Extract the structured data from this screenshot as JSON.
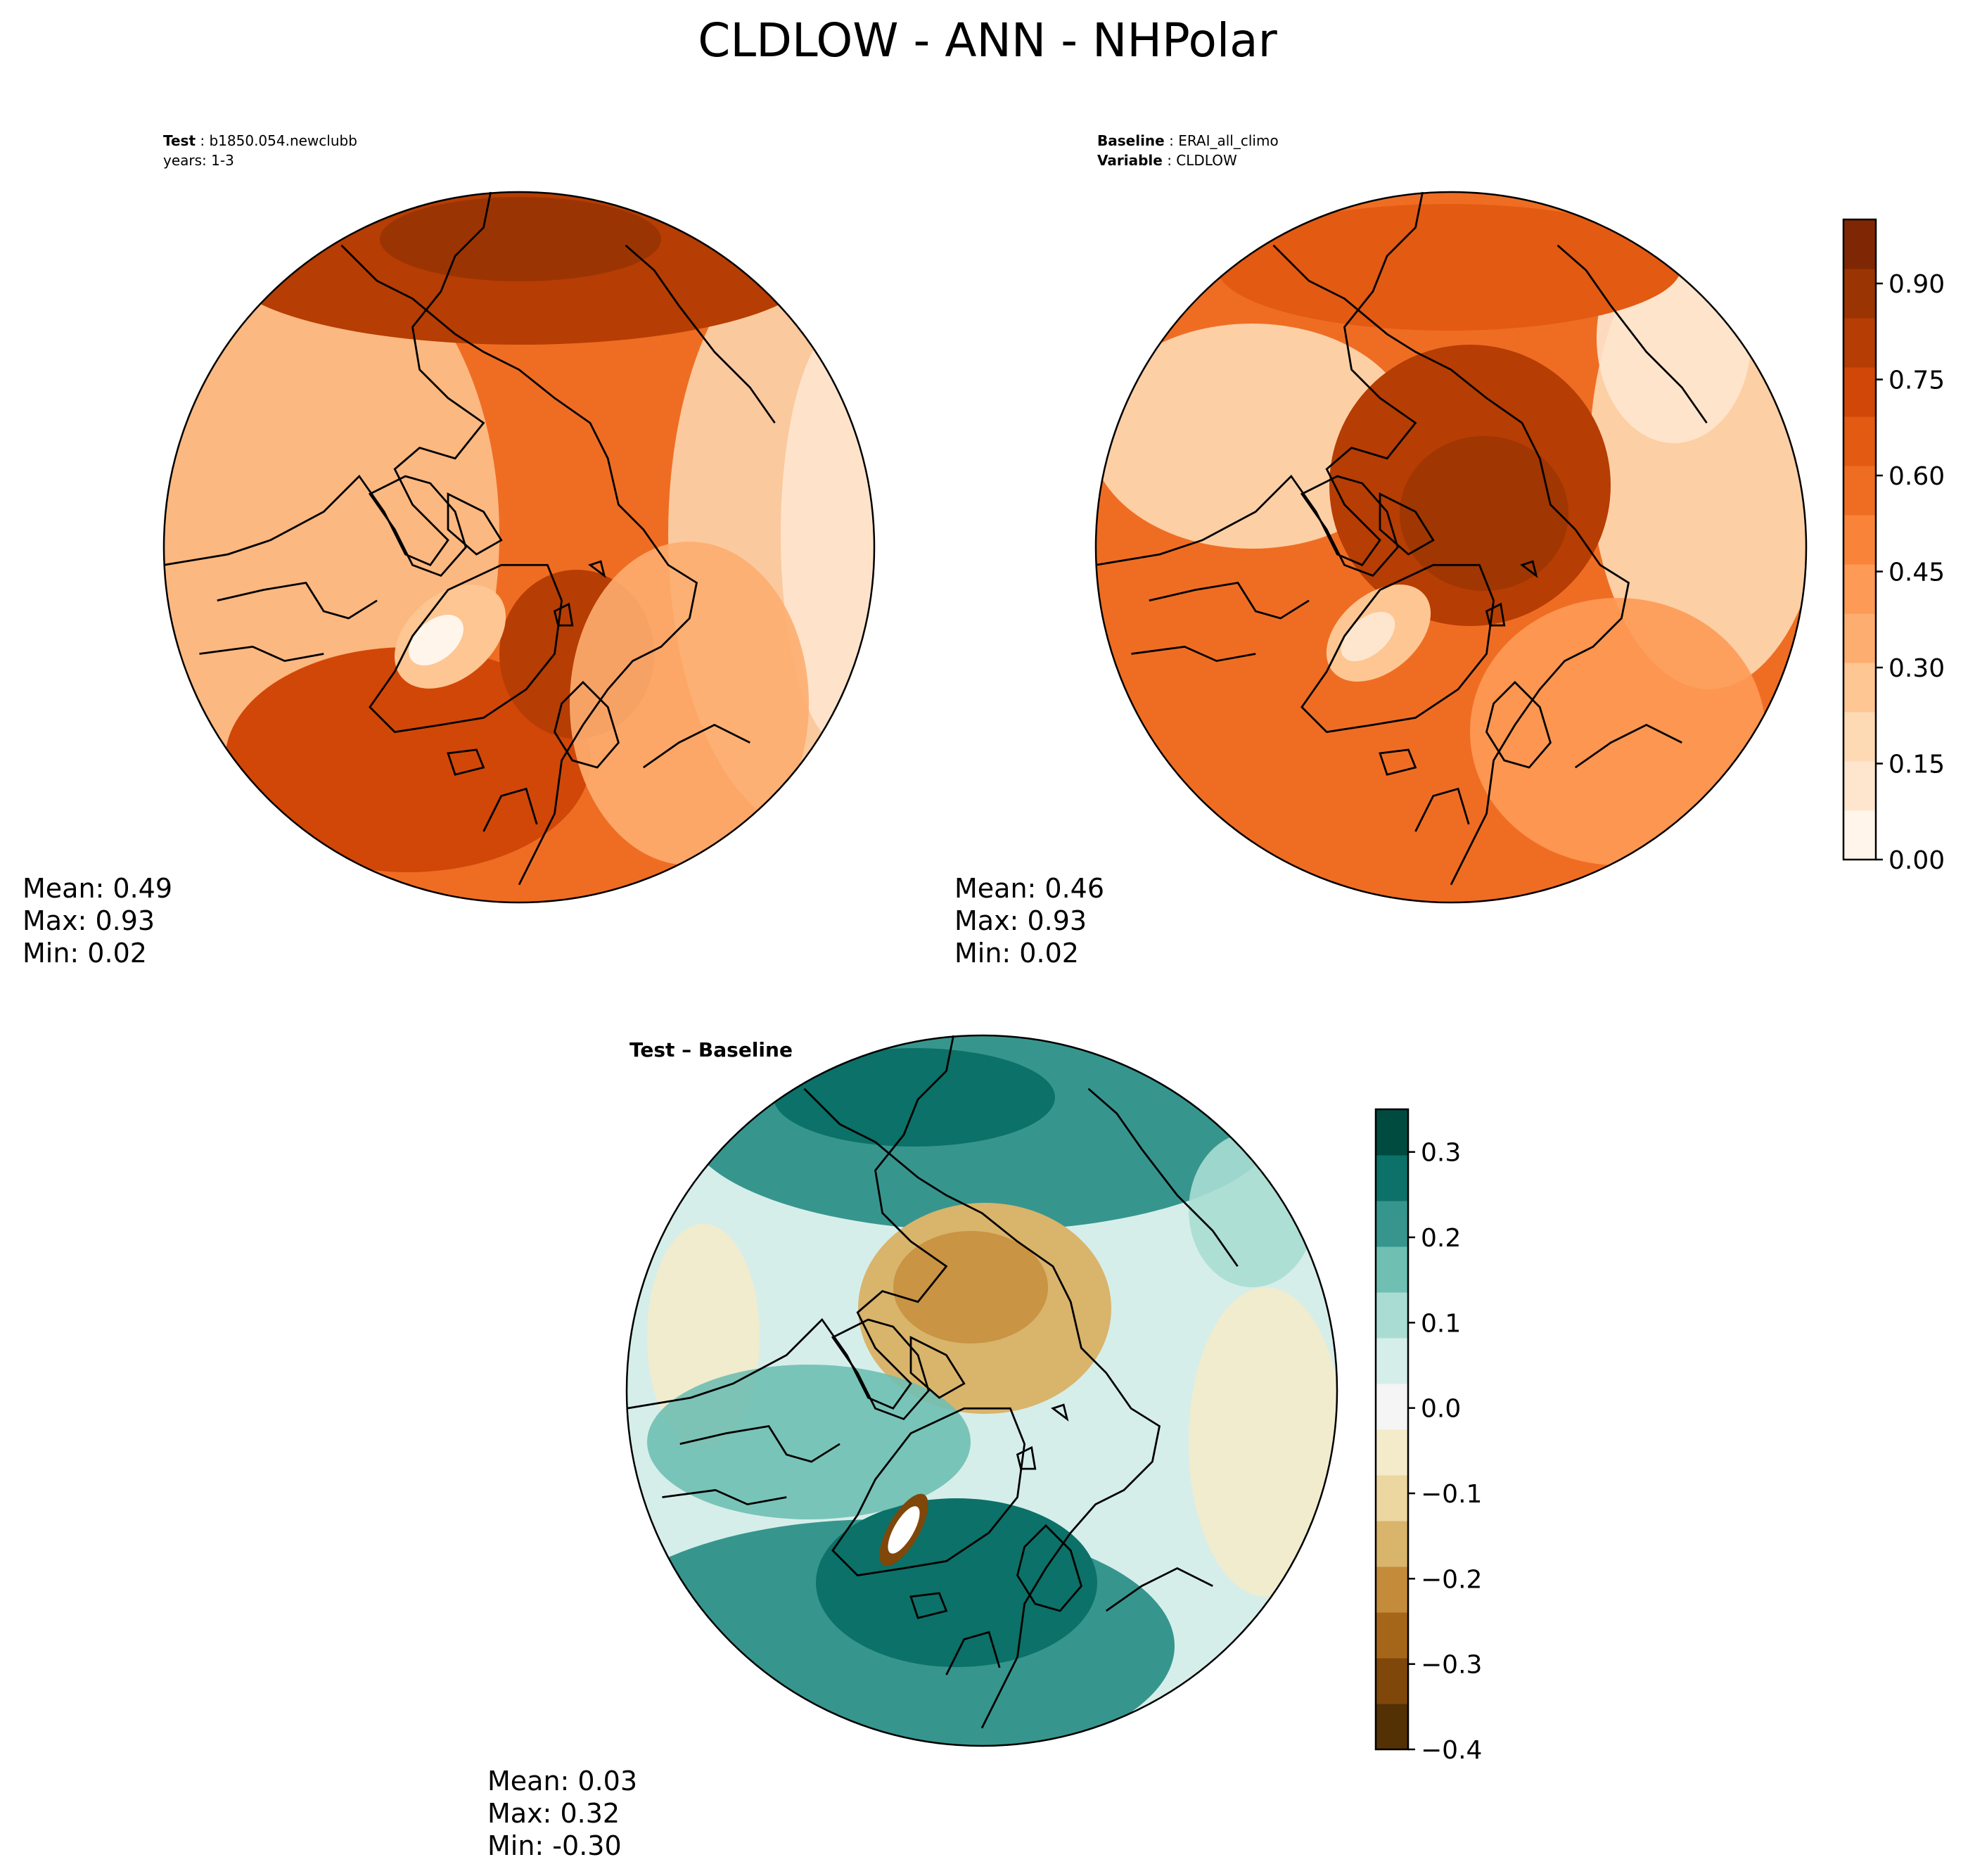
{
  "title": "CLDLOW - ANN - NHPolar",
  "colors": {
    "seq": [
      "#fff5eb",
      "#fee6ce",
      "#fdd9b4",
      "#fdc692",
      "#fdad6f",
      "#fd9a55",
      "#f98439",
      "#ef6d23",
      "#e35a12",
      "#d14708",
      "#b63d03",
      "#9b3403",
      "#7f2704"
    ],
    "div": [
      "#543005",
      "#7f470a",
      "#a6661a",
      "#c48c3a",
      "#d9b46b",
      "#ebd79f",
      "#f4ebcb",
      "#f5f5f5",
      "#d6eeea",
      "#a9ddd3",
      "#6fbfb2",
      "#36968e",
      "#0c7168",
      "#004b3f"
    ],
    "land_outline": "#000000",
    "text": "#000000"
  },
  "chart_data": [
    {
      "type": "heatmap",
      "id": "test",
      "header_bold": "Test",
      "header_value": "b1850.054.newclubb",
      "header_line2": "years: 1-3",
      "stats": {
        "mean": "Mean:  0.49",
        "max": "Max:  0.93",
        "min": "Min:  0.02"
      },
      "field_range": [
        0.02,
        0.93
      ]
    },
    {
      "type": "heatmap",
      "id": "baseline",
      "header_bold": "Baseline",
      "header_value": "ERAI_all_climo",
      "header_bold2": "Variable",
      "header_value2": "CLDLOW",
      "stats": {
        "mean": "Mean:  0.46",
        "max": "Max:  0.93",
        "min": "Min:  0.02"
      },
      "field_range": [
        0.02,
        0.93
      ],
      "colorbar": {
        "range": [
          0,
          1
        ],
        "ticks": [
          "0.00",
          "0.15",
          "0.30",
          "0.45",
          "0.60",
          "0.75",
          "0.90"
        ],
        "tick_values": [
          0,
          0.15,
          0.3,
          0.45,
          0.6,
          0.75,
          0.9
        ]
      }
    },
    {
      "type": "heatmap",
      "id": "diff",
      "header_bold": "Test – Baseline",
      "stats": {
        "mean": "Mean:  0.03",
        "max": "Max:  0.32",
        "min": "Min: -0.30"
      },
      "field_range": [
        -0.3,
        0.32
      ],
      "colorbar": {
        "range": [
          -0.4,
          0.35
        ],
        "ticks": [
          "0.3",
          "0.2",
          "0.1",
          "0.0",
          "−0.1",
          "−0.2",
          "−0.3",
          "−0.4"
        ],
        "tick_values": [
          0.3,
          0.2,
          0.1,
          0.0,
          -0.1,
          -0.2,
          -0.3,
          -0.4
        ]
      }
    }
  ]
}
